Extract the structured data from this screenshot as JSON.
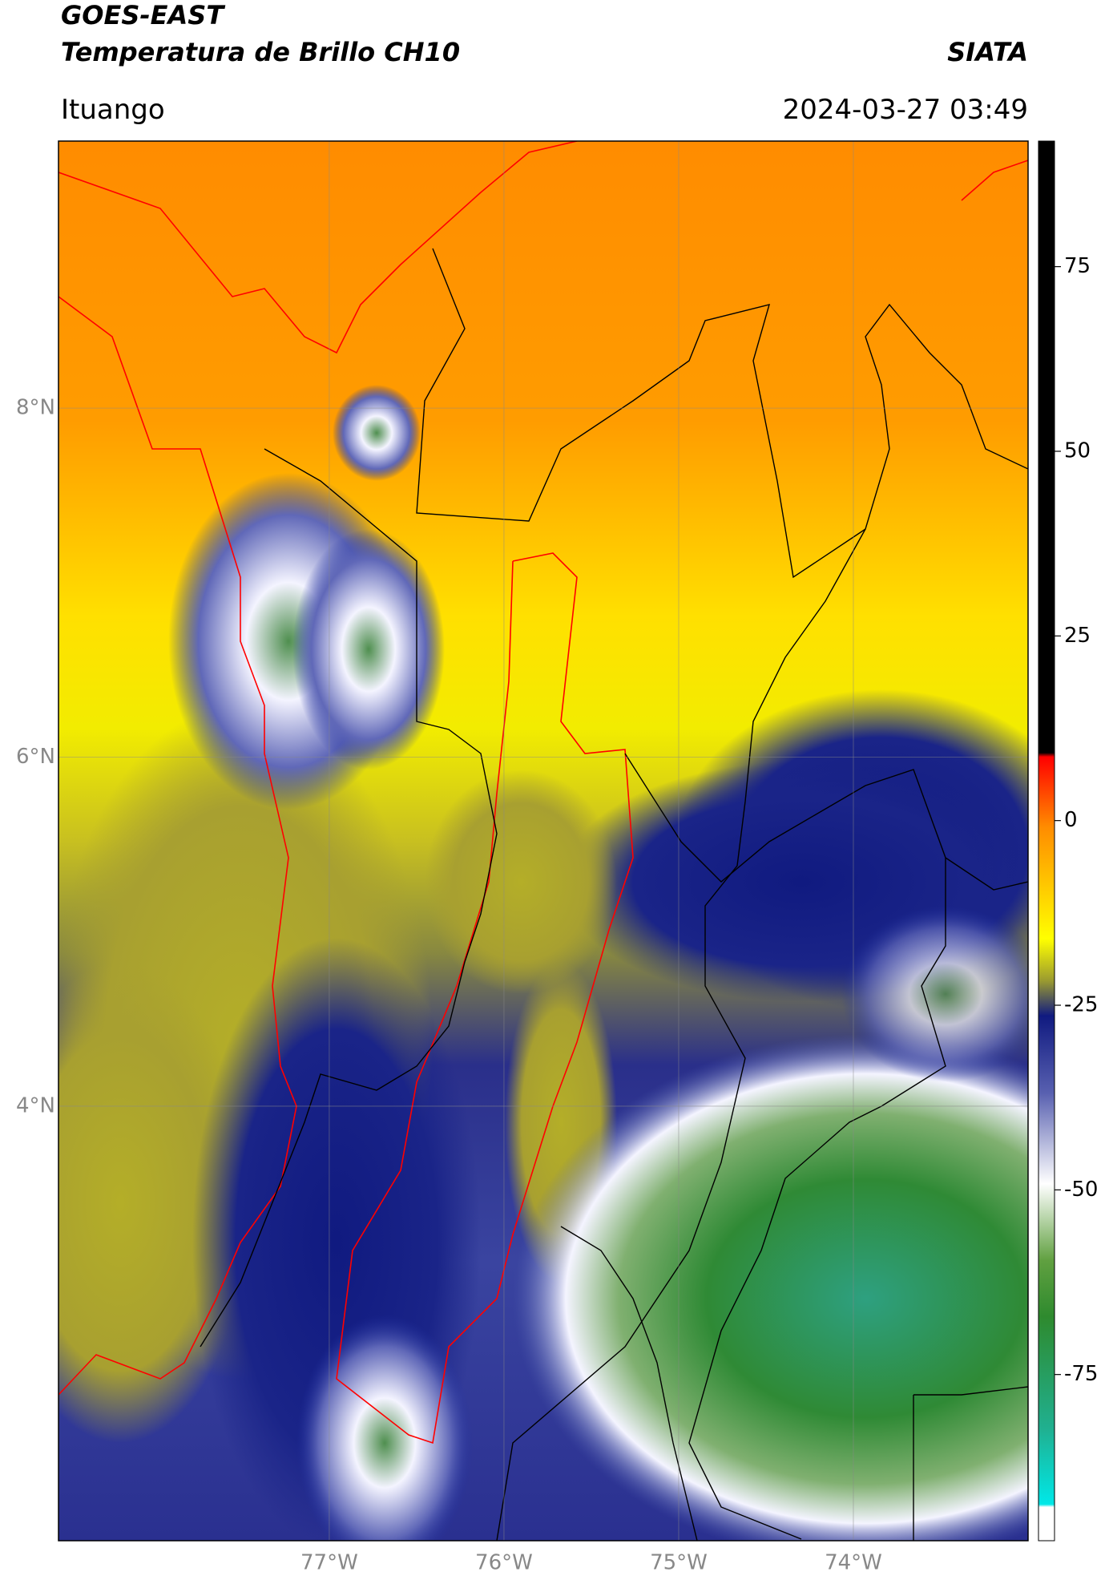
{
  "header": {
    "title": "GOES-EAST",
    "subtitle": "Temperatura de Brillo CH10",
    "source": "SIATA",
    "region": "Ituango",
    "datetime": "2024-03-27 03:49"
  },
  "map": {
    "xlim": [
      -78.55,
      -73.0
    ],
    "ylim": [
      1.51,
      9.53
    ],
    "xticks": [
      {
        "value": -77,
        "label": "77°W"
      },
      {
        "value": -76,
        "label": "76°W"
      },
      {
        "value": -75,
        "label": "75°W"
      },
      {
        "value": -74,
        "label": "74°W"
      }
    ],
    "yticks": [
      {
        "value": 8,
        "label": "8°N"
      },
      {
        "value": 6,
        "label": "6°N"
      },
      {
        "value": 4,
        "label": "4°N"
      }
    ],
    "grid": true
  },
  "colorbar": {
    "lim": [
      -97.5,
      92
    ],
    "ticks": [
      -75,
      -50,
      -25,
      0,
      25,
      50,
      75
    ]
  }
}
